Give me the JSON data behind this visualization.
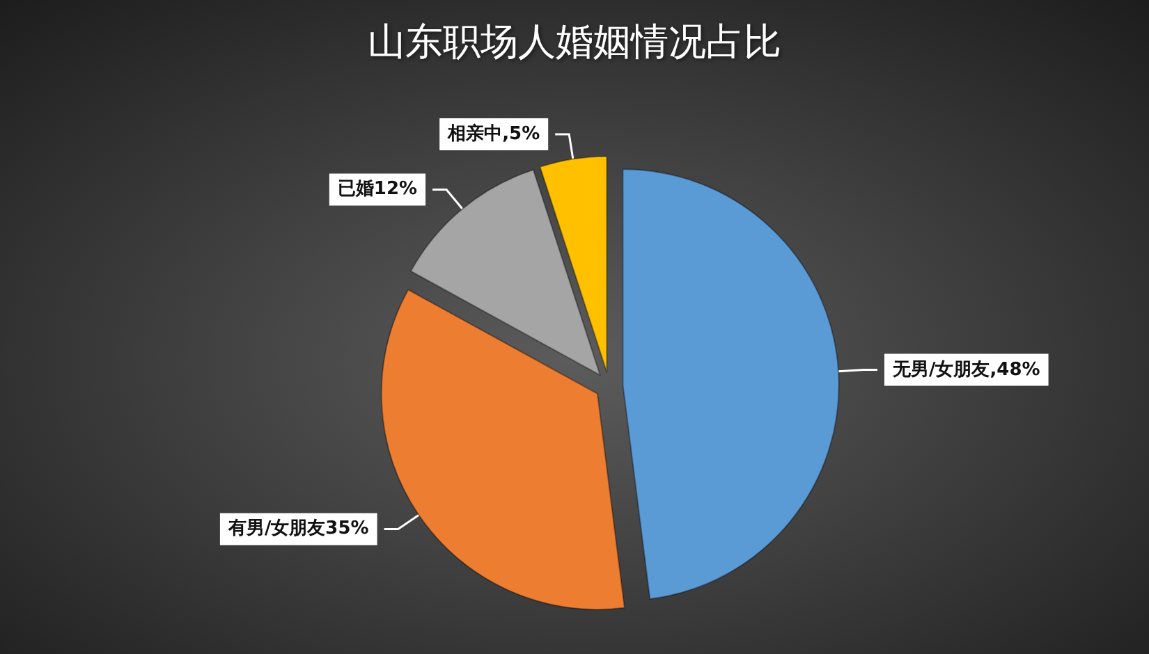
{
  "chart_data": {
    "type": "pie",
    "title": "山东职场人婚姻情况占比",
    "categories": [
      "无男/女朋友",
      "有男/女朋友",
      "已婚",
      "相亲中"
    ],
    "values": [
      48,
      35,
      12,
      5
    ],
    "colors": [
      "#5b9bd5",
      "#ed7d31",
      "#a5a5a5",
      "#ffc000"
    ],
    "value_labels": [
      ",48%",
      "35%",
      "12%",
      ",5%"
    ]
  }
}
